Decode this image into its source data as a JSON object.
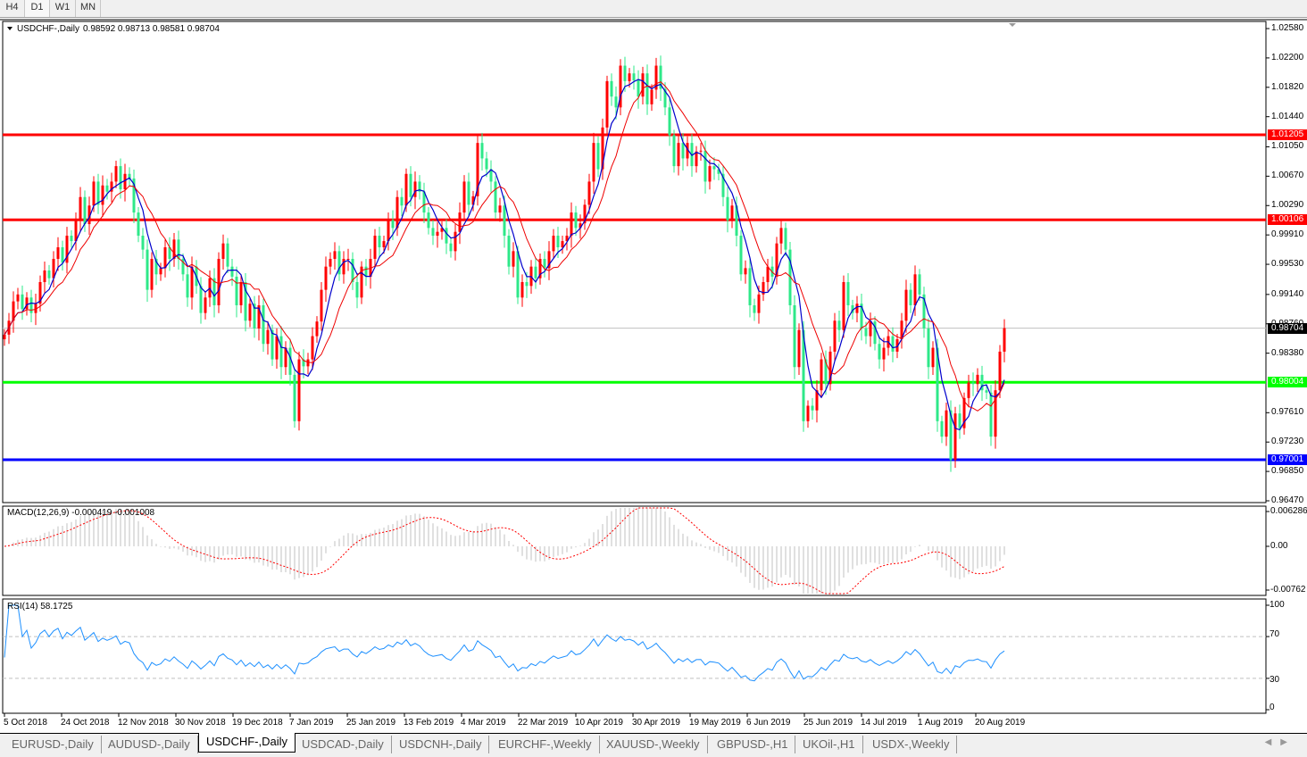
{
  "timeframes": [
    "H4",
    "D1",
    "W1",
    "MN"
  ],
  "active_timeframe": "D1",
  "header": {
    "symbol": "USDCHF-,Daily",
    "ohlc": "0.98592 0.98713 0.98581 0.98704"
  },
  "price_axis": [
    "1.02580",
    "1.02200",
    "1.01820",
    "1.01440",
    "1.01050",
    "1.00670",
    "1.00290",
    "0.99910",
    "0.99530",
    "0.99140",
    "0.98760",
    "0.98380",
    "0.97610",
    "0.97230",
    "0.96850",
    "0.96470"
  ],
  "levels": [
    {
      "label": "1.01205",
      "price": 1.01205,
      "color": "#ff0000"
    },
    {
      "label": "1.00106",
      "price": 1.00106,
      "color": "#ff0000"
    },
    {
      "label": "0.98004",
      "price": 0.98004,
      "color": "#00ff00"
    },
    {
      "label": "0.97001",
      "price": 0.97001,
      "color": "#0000ff"
    }
  ],
  "current_price": {
    "label": "0.98704",
    "price": 0.98704
  },
  "macd": {
    "label": "MACD(12,26,9) -0.000419 -0.001008",
    "axis": [
      "0.006286",
      "0.00",
      "-0.00762"
    ]
  },
  "rsi": {
    "label": "RSI(14) 58.1725",
    "axis": [
      "100",
      "70",
      "30",
      "0"
    ]
  },
  "x_axis": [
    "5 Oct 2018",
    "24 Oct 2018",
    "12 Nov 2018",
    "30 Nov 2018",
    "19 Dec 2018",
    "7 Jan 2019",
    "25 Jan 2019",
    "13 Feb 2019",
    "4 Mar 2019",
    "22 Mar 2019",
    "10 Apr 2019",
    "30 Apr 2019",
    "19 May 2019",
    "6 Jun 2019",
    "25 Jun 2019",
    "14 Jul 2019",
    "1 Aug 2019",
    "20 Aug 2019"
  ],
  "tabs": [
    "EURUSD-,Daily",
    "AUDUSD-,Daily",
    "USDCHF-,Daily",
    "USDCAD-,Daily",
    "USDCNH-,Daily",
    "EURCHF-,Weekly",
    "XAUUSD-,Weekly",
    "GBPUSD-,H1",
    "UKOil-,H1",
    "USDX-,Weekly"
  ],
  "active_tab": "USDCHF-,Daily",
  "colors": {
    "bull": "#ff0000",
    "bear": "#2ee889",
    "ma_fast": "#0000cc",
    "ma_slow": "#ee0000",
    "rsi": "#1e90ff",
    "macd_hist": "#c0c0c0",
    "macd_signal": "#ff0000"
  },
  "chart_data": {
    "type": "candlestick",
    "symbol": "USDCHF-,Daily",
    "ylim": [
      0.9647,
      1.0258
    ],
    "close": [
      0.9862,
      0.988,
      0.9905,
      0.9914,
      0.9895,
      0.991,
      0.989,
      0.9902,
      0.993,
      0.9945,
      0.9935,
      0.996,
      0.9975,
      0.9955,
      0.999,
      0.9983,
      1.001,
      1.004,
      1.0005,
      1.0029,
      1.006,
      1.003,
      1.0055,
      1.0047,
      1.006,
      1.008,
      1.005,
      1.007,
      1.0064,
      1.002,
      0.999,
      0.9972,
      0.992,
      0.996,
      0.994,
      0.9948,
      0.9975,
      0.996,
      0.9985,
      0.996,
      0.994,
      0.991,
      0.995,
      0.9925,
      0.989,
      0.991,
      0.9935,
      0.99,
      0.996,
      0.998,
      0.995,
      0.9937,
      0.99,
      0.993,
      0.988,
      0.9902,
      0.987,
      0.99,
      0.985,
      0.9868,
      0.983,
      0.986,
      0.982,
      0.9845,
      0.981,
      0.975,
      0.983,
      0.9821,
      0.983,
      0.986,
      0.9879,
      0.992,
      0.995,
      0.996,
      0.997,
      0.994,
      0.996,
      0.996,
      0.993,
      0.991,
      0.995,
      0.9937,
      0.996,
      0.999,
      0.9975,
      0.9983,
      1.001,
      1.0,
      1.004,
      1.0029,
      1.007,
      1.004,
      1.006,
      1.0047,
      1.002,
      1.0,
      0.999,
      0.9995,
      1.0,
      0.998,
      0.997,
      0.9995,
      1.002,
      1.006,
      1.003,
      1.0041,
      1.011,
      1.009,
      1.0076,
      1.006,
      1.002,
      1.0029,
      0.999,
      0.995,
      0.997,
      0.991,
      0.993,
      0.9925,
      0.995,
      0.9935,
      0.996,
      0.9948,
      0.997,
      0.999,
      0.9975,
      0.9983,
      0.999,
      1.002,
      1.0,
      1.0006,
      1.003,
      1.006,
      1.011,
      1.0076,
      1.013,
      1.019,
      1.017,
      1.0156,
      1.021,
      1.019,
      1.02,
      1.0191,
      1.017,
      1.02,
      1.016,
      1.0179,
      1.021,
      1.018,
      1.0156,
      1.012,
      1.008,
      1.011,
      1.009,
      1.011,
      1.008,
      1.0099,
      1.01,
      1.006,
      1.008,
      1.0076,
      1.007,
      1.004,
      1.001,
      1.0029,
      0.999,
      0.994,
      0.9948,
      0.99,
      0.989,
      0.9914,
      0.993,
      0.995,
      0.9937,
      0.998,
      1.0,
      0.9972,
      0.99,
      0.982,
      0.9868,
      0.975,
      0.977,
      0.9764,
      0.979,
      0.983,
      0.9798,
      0.984,
      0.988,
      0.9868,
      0.993,
      0.99,
      0.989,
      0.9902,
      0.987,
      0.986,
      0.9879,
      0.985,
      0.983,
      0.9845,
      0.986,
      0.984,
      0.9856,
      0.988,
      0.992,
      0.99,
      0.994,
      0.9914,
      0.987,
      0.982,
      0.9845,
      0.975,
      0.973,
      0.9764,
      0.97,
      0.976,
      0.9741,
      0.978,
      0.98,
      0.9798,
      0.981,
      0.979,
      0.9787,
      0.973,
      0.979,
      0.984,
      0.98704
    ]
  }
}
